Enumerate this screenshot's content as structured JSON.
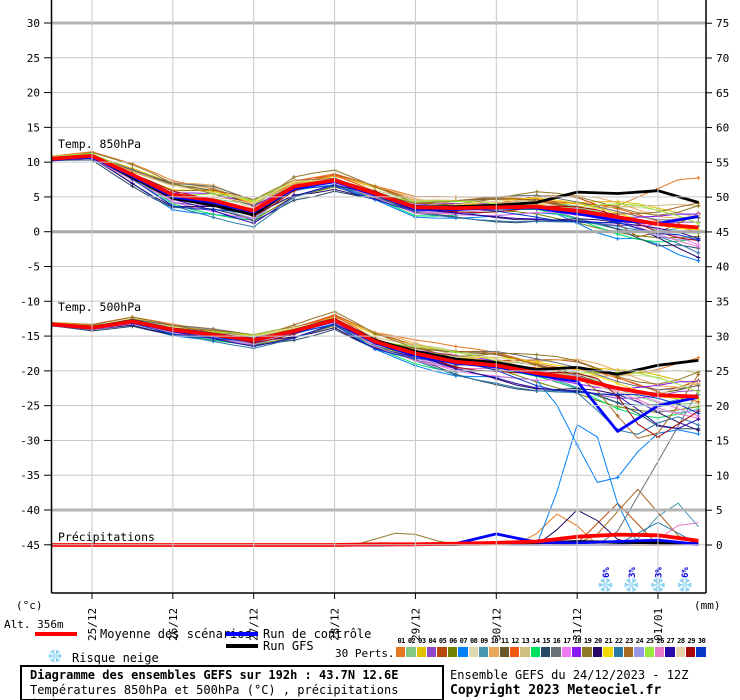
{
  "alt_label": "Alt. 356m",
  "legend": {
    "mean_label": "Moyenne des scénarios",
    "control_label": "Run de contrôle",
    "gfs_label": "Run GFS",
    "perts_label": "30 Perts.",
    "snow_label": "Risque neige"
  },
  "footer": {
    "box_line1": "Diagramme des ensembles GEFS sur 192h : 43.7N 12.6E",
    "box_line2": "Températures 850hPa et 500hPa (°C) , précipitations (mm)",
    "credit_line1": "Ensemble GEFS du 24/12/2023 - 12Z",
    "credit_line2": "Copyright 2023 Meteociel.fr"
  },
  "chart_data": {
    "type": "line",
    "title": "Diagramme des ensembles GEFS sur 192h : 43.7N 12.6E",
    "run": "GEFS 24/12/2023 12Z, 192h",
    "x": {
      "day_labels": [
        "25/12",
        "26/12",
        "27/12",
        "28/12",
        "29/12",
        "30/12",
        "31/12",
        "01/01"
      ],
      "hours_step": 12,
      "total_hours": 192
    },
    "axes": {
      "left": {
        "unit": "(°c)",
        "min": -45,
        "max": 30,
        "step": 5
      },
      "right": {
        "unit": "(mm)",
        "min": 0,
        "max": 75,
        "step": 5
      }
    },
    "series_colors": {
      "mean": "#ff0000",
      "control": "#0000ff",
      "gfs": "#000000"
    },
    "panels": {
      "t850": {
        "label": "Temp. 850hPa",
        "mean": [
          10.5,
          10.9,
          8.2,
          5.3,
          4.5,
          3.0,
          6.5,
          7.4,
          5.5,
          3.5,
          3.4,
          3.5,
          3.6,
          3.0,
          2.1,
          1.1,
          0.6
        ],
        "control": [
          10.4,
          10.7,
          8.0,
          5.0,
          4.2,
          2.8,
          6.2,
          7.2,
          5.3,
          3.3,
          3.2,
          3.4,
          3.4,
          2.6,
          1.6,
          1.2,
          2.2
        ],
        "gfs": [
          10.5,
          10.8,
          7.8,
          4.8,
          3.8,
          2.4,
          6.3,
          7.3,
          5.6,
          3.6,
          3.6,
          3.8,
          4.2,
          5.7,
          5.5,
          5.9,
          4.2
        ],
        "spread": [
          0.4,
          0.5,
          1.2,
          1.8,
          2.0,
          1.8,
          1.5,
          1.2,
          1.0,
          1.2,
          1.3,
          1.5,
          1.8,
          2.0,
          2.5,
          3.0,
          4.0
        ]
      },
      "t500": {
        "label": "Temp. 500hPa",
        "mean": [
          -13.3,
          -13.8,
          -12.9,
          -14.1,
          -14.8,
          -15.6,
          -14.3,
          -12.7,
          -15.8,
          -17.5,
          -18.7,
          -19.2,
          -20.3,
          -21.1,
          -22.5,
          -23.5,
          -23.7
        ],
        "control": [
          -13.4,
          -13.9,
          -13.0,
          -14.2,
          -14.9,
          -15.7,
          -14.4,
          -12.8,
          -16.0,
          -17.8,
          -18.9,
          -19.4,
          -20.6,
          -21.5,
          -28.7,
          -25.0,
          -23.8
        ],
        "gfs": [
          -13.3,
          -13.7,
          -12.8,
          -14.0,
          -14.7,
          -15.5,
          -14.2,
          -12.6,
          -15.6,
          -17.2,
          -18.3,
          -18.8,
          -19.8,
          -19.5,
          -20.5,
          -19.2,
          -18.5
        ],
        "spread": [
          0.3,
          0.4,
          0.5,
          0.7,
          0.8,
          0.9,
          1.0,
          1.0,
          1.2,
          1.5,
          1.8,
          2.0,
          2.2,
          2.5,
          3.0,
          3.8,
          4.5
        ]
      },
      "precip": {
        "label": "Précipitations",
        "mean": [
          0,
          0,
          0,
          0,
          0,
          0,
          0,
          0,
          0.1,
          0.1,
          0.2,
          0.3,
          0.5,
          1.2,
          1.5,
          1.4,
          0.6
        ],
        "control": [
          0,
          0,
          0,
          0,
          0,
          0,
          0,
          0,
          0,
          0.1,
          0.2,
          1.6,
          0.4,
          0.3,
          0.5,
          0.7,
          0.1
        ],
        "gfs": [
          0,
          0,
          0,
          0,
          0,
          0,
          0,
          0,
          0,
          0.1,
          0.1,
          0.3,
          0.3,
          0.5,
          0.4,
          0.3,
          0.2
        ]
      }
    },
    "members": {
      "count": 30,
      "labels": [
        "01",
        "02",
        "03",
        "04",
        "05",
        "06",
        "07",
        "08",
        "09",
        "10",
        "11",
        "12",
        "13",
        "14",
        "15",
        "16",
        "17",
        "18",
        "19",
        "20",
        "21",
        "22",
        "23",
        "24",
        "25",
        "26",
        "27",
        "28",
        "29",
        "30"
      ],
      "colors": [
        "#e87820",
        "#84c884",
        "#e0c000",
        "#9048c8",
        "#b84808",
        "#708000",
        "#0080f8",
        "#e0d8b0",
        "#4898b0",
        "#e8a858",
        "#685828",
        "#f05810",
        "#d0c080",
        "#00e060",
        "#284868",
        "#687078",
        "#f078f0",
        "#8818f0",
        "#907828",
        "#280868",
        "#f0d800",
        "#2878a8",
        "#a86820",
        "#9898e8",
        "#98e838",
        "#e878c8",
        "#2808a8",
        "#e8d0a8",
        "#a80808",
        "#0838c8"
      ],
      "biases": [
        0.9,
        0.1,
        0.5,
        -0.2,
        0.6,
        -0.5,
        -0.8,
        0.3,
        -0.3,
        0.7,
        0.4,
        0.2,
        0.5,
        -0.6,
        -1.0,
        0.6,
        -0.4,
        0.1,
        0.8,
        -0.7,
        0.3,
        -0.9,
        0.5,
        -0.2,
        0.4,
        -0.3,
        -0.6,
        0.2,
        -0.1,
        -0.5
      ]
    },
    "outliers": {
      "t850": [
        {
          "m": 15,
          "day": 7.85,
          "value": -1.5,
          "w": 0.6
        },
        {
          "m": 30,
          "day": 7.6,
          "value": -0.5,
          "w": 0.6
        },
        {
          "m": 7,
          "day": 7.0,
          "value": -1.0,
          "w": 0.7
        },
        {
          "m": 1,
          "day": 7.9,
          "value": 8.0,
          "w": 0.9
        },
        {
          "m": 5,
          "day": 7.3,
          "value": -1.0,
          "w": 0.6
        }
      ],
      "t500": [
        {
          "m": 7,
          "day": 6.85,
          "value": -38.0,
          "w": 0.75
        },
        {
          "m": 22,
          "day": 7.15,
          "value": -30.0,
          "w": 0.6
        },
        {
          "m": 23,
          "day": 7.35,
          "value": -31.0,
          "w": 0.7
        },
        {
          "m": 27,
          "day": 7.65,
          "value": -29.0,
          "w": 0.6
        },
        {
          "m": 29,
          "day": 7.45,
          "value": -30.0,
          "w": 0.55
        },
        {
          "m": 15,
          "day": 7.9,
          "value": -28.0,
          "w": 0.6
        }
      ]
    },
    "precip_spikes": [
      {
        "m": 7,
        "day": 6.6,
        "value": 21,
        "w": 0.55
      },
      {
        "m": 16,
        "day": 8.0,
        "value": 22,
        "w": 1.1
      },
      {
        "m": 23,
        "day": 7.25,
        "value": 8,
        "w": 0.6
      },
      {
        "m": 5,
        "day": 7.0,
        "value": 6,
        "w": 0.5
      },
      {
        "m": 1,
        "day": 6.3,
        "value": 5,
        "w": 0.45
      },
      {
        "m": 20,
        "day": 6.55,
        "value": 5.5,
        "w": 0.5
      },
      {
        "m": 26,
        "day": 7.9,
        "value": 4,
        "w": 0.5
      },
      {
        "m": 19,
        "day": 4.35,
        "value": 2,
        "w": 0.6
      },
      {
        "m": 22,
        "day": 7.5,
        "value": 3,
        "w": 0.5
      },
      {
        "m": 9,
        "day": 7.7,
        "value": 6.5,
        "w": 0.5
      }
    ],
    "snow_risk": [
      {
        "day": 6.85,
        "label": "6%"
      },
      {
        "day": 7.17,
        "label": "3%"
      },
      {
        "day": 7.5,
        "label": "3%"
      },
      {
        "day": 7.83,
        "label": "6%"
      }
    ]
  }
}
